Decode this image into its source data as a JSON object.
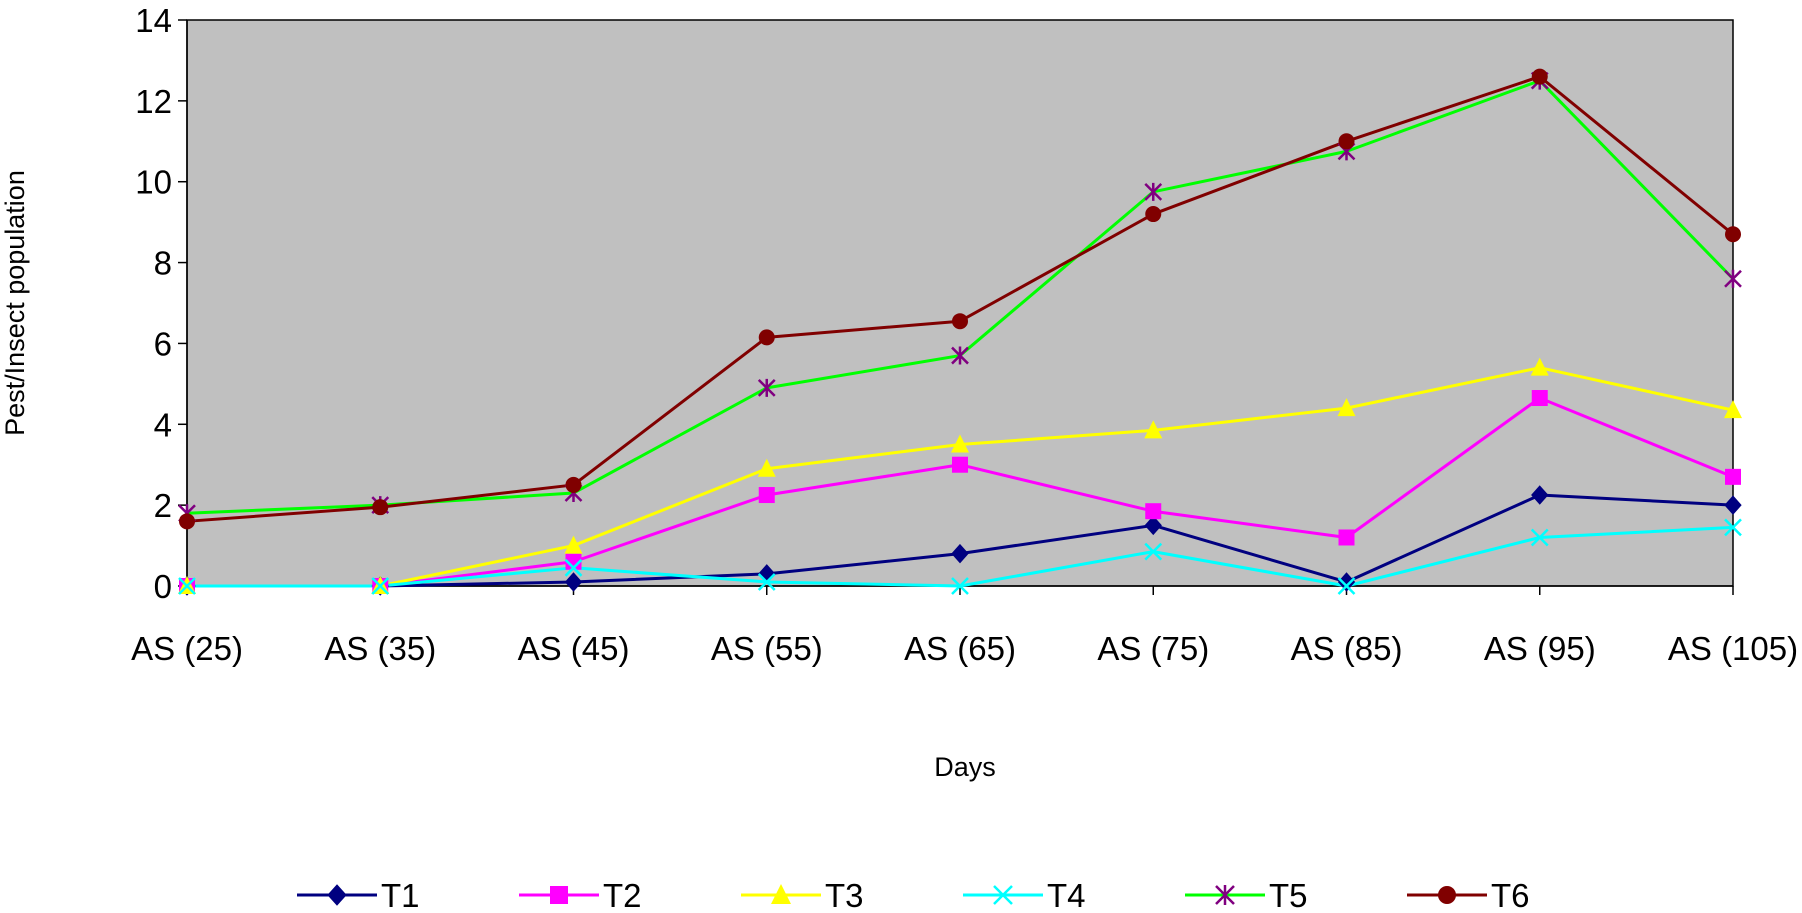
{
  "chart_data": {
    "type": "line",
    "xlabel": "Days",
    "ylabel": "Pest/Insect population",
    "ylim": [
      0,
      14
    ],
    "yticks": [
      "0",
      "2",
      "4",
      "6",
      "8",
      "10",
      "12",
      "14"
    ],
    "categories": [
      "AS (25)",
      "AS (35)",
      "AS (45)",
      "AS (55)",
      "AS (65)",
      "AS (75)",
      "AS (85)",
      "AS (95)",
      "AS (105)"
    ],
    "plot_background": "#c0c0c0",
    "grid": false,
    "legend_position": "bottom",
    "series": [
      {
        "name": "T1",
        "color": "#000080",
        "marker": "diamond",
        "values": [
          0,
          0,
          0.1,
          0.3,
          0.8,
          1.5,
          0.1,
          2.25,
          2.0
        ]
      },
      {
        "name": "T2",
        "color": "#ff00ff",
        "marker": "square",
        "values": [
          0,
          0,
          0.6,
          2.25,
          3.0,
          1.85,
          1.2,
          4.65,
          2.7
        ]
      },
      {
        "name": "T3",
        "color": "#ffff00",
        "marker": "triangle",
        "values": [
          0,
          0,
          1.0,
          2.9,
          3.5,
          3.85,
          4.4,
          5.4,
          4.35
        ]
      },
      {
        "name": "T4",
        "color": "#00ffff",
        "marker": "x",
        "values": [
          0,
          0,
          0.45,
          0.1,
          0.0,
          0.85,
          0.0,
          1.2,
          1.45
        ]
      },
      {
        "name": "T5",
        "color": "#00ff00",
        "marker": "asterisk",
        "marker_color": "#800080",
        "values": [
          1.8,
          2.0,
          2.3,
          4.9,
          5.7,
          9.75,
          10.75,
          12.5,
          7.6
        ]
      },
      {
        "name": "T6",
        "color": "#800000",
        "marker": "circle",
        "values": [
          1.6,
          1.95,
          2.5,
          6.15,
          6.55,
          9.2,
          11.0,
          12.6,
          8.7
        ]
      }
    ]
  }
}
